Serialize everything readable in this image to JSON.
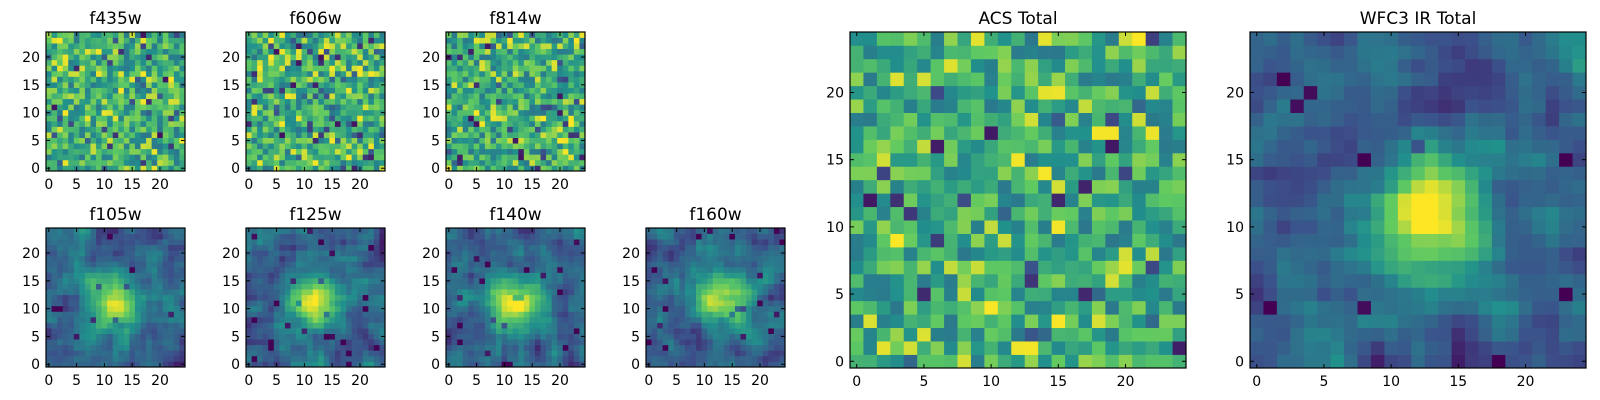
{
  "chart_data": {
    "type": "heatmap",
    "colormap": [
      "#440154",
      "#3b528b",
      "#21918c",
      "#5ec962",
      "#fde725"
    ],
    "panels": [
      {
        "id": "f435w",
        "title": "f435w",
        "size": 25,
        "xticks": [
          0,
          5,
          10,
          15,
          20
        ],
        "yticks": [
          0,
          5,
          10,
          15,
          20
        ],
        "source": "noise",
        "seed": 11
      },
      {
        "id": "f606w",
        "title": "f606w",
        "size": 25,
        "xticks": [
          0,
          5,
          10,
          15,
          20
        ],
        "yticks": [
          0,
          5,
          10,
          15,
          20
        ],
        "source": "noise",
        "seed": 23
      },
      {
        "id": "f814w",
        "title": "f814w",
        "size": 25,
        "xticks": [
          0,
          5,
          10,
          15,
          20
        ],
        "yticks": [
          0,
          5,
          10,
          15,
          20
        ],
        "source": "noise",
        "seed": 37
      },
      {
        "id": "f105w",
        "title": "f105w",
        "size": 25,
        "xticks": [
          0,
          5,
          10,
          15,
          20
        ],
        "yticks": [
          0,
          5,
          10,
          15,
          20
        ],
        "source": "blob",
        "seed": 41,
        "peak_x": 12,
        "peak_y": 11
      },
      {
        "id": "f125w",
        "title": "f125w",
        "size": 25,
        "xticks": [
          0,
          5,
          10,
          15,
          20
        ],
        "yticks": [
          0,
          5,
          10,
          15,
          20
        ],
        "source": "blob",
        "seed": 53,
        "peak_x": 12,
        "peak_y": 11
      },
      {
        "id": "f140w",
        "title": "f140w",
        "size": 25,
        "xticks": [
          0,
          5,
          10,
          15,
          20
        ],
        "yticks": [
          0,
          5,
          10,
          15,
          20
        ],
        "source": "blob",
        "seed": 67,
        "peak_x": 12,
        "peak_y": 11
      },
      {
        "id": "f160w",
        "title": "f160w",
        "size": 25,
        "xticks": [
          0,
          5,
          10,
          15,
          20
        ],
        "yticks": [
          0,
          5,
          10,
          15,
          20
        ],
        "source": "blob",
        "seed": 79,
        "peak_x": 13,
        "peak_y": 12
      },
      {
        "id": "acs_total",
        "title": "ACS Total",
        "size": 25,
        "xticks": [
          0,
          5,
          10,
          15,
          20
        ],
        "yticks": [
          0,
          5,
          10,
          15,
          20
        ],
        "source": "noise",
        "seed": 97
      },
      {
        "id": "wfc3_ir_total",
        "title": "WFC3 IR Total",
        "size": 25,
        "xticks": [
          0,
          5,
          10,
          15,
          20
        ],
        "yticks": [
          0,
          5,
          10,
          15,
          20
        ],
        "source": "blob",
        "seed": 101,
        "peak_x": 13,
        "peak_y": 11
      }
    ]
  }
}
